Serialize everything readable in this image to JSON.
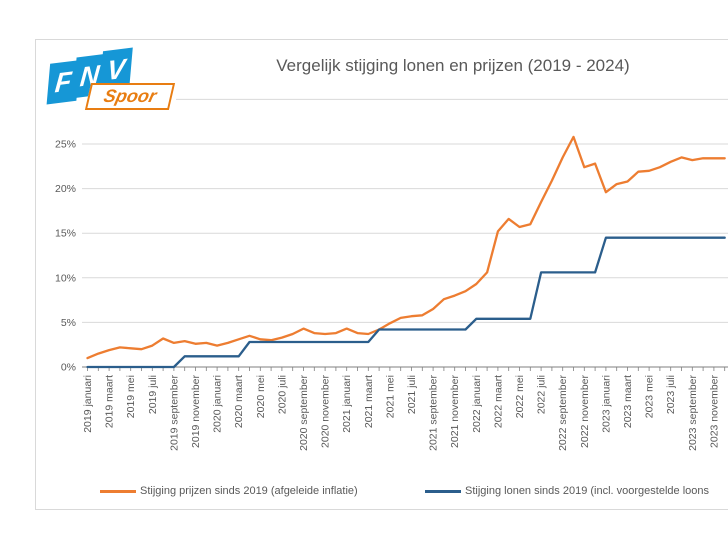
{
  "window": {
    "background": "#ffffff"
  },
  "card": {
    "border_color": "#d9d9d9",
    "background": "#ffffff"
  },
  "logo": {
    "brand_letters": [
      "F",
      "N",
      "V"
    ],
    "sub_label": "Spoor",
    "blue": "#1697d6",
    "orange": "#e87d12"
  },
  "chart_data": {
    "type": "line",
    "title": "Vergelijk stijging lonen en prijzen (2019 - 2024)",
    "title_color": "#595959",
    "grid": "horizontal",
    "grid_color": "#d9d9d9",
    "axis_color": "#7f7f7f",
    "label_color": "#595959",
    "legend_position": "bottom",
    "ylim": [
      0,
      30
    ],
    "y_major_unit": 5,
    "y_tick_labels": [
      "0%",
      "5%",
      "10%",
      "15%",
      "20%",
      "25%"
    ],
    "x_tick_labels": [
      "2019 januari",
      "2019 maart",
      "2019 mei",
      "2019 juli",
      "2019 september",
      "2019 november",
      "2020 januari",
      "2020 maart",
      "2020 mei",
      "2020 juli",
      "2020 september",
      "2020 november",
      "2021 januari",
      "2021 maart",
      "2021 mei",
      "2021 juli",
      "2021 september",
      "2021 november",
      "2022 januari",
      "2022 maart",
      "2022 mei",
      "2022 juli",
      "2022 september",
      "2022 november",
      "2023 januari",
      "2023 maart",
      "2023 mei",
      "2023 juli",
      "2023 september",
      "2023 november"
    ],
    "x_months": [
      "2019-01",
      "2019-02",
      "2019-03",
      "2019-04",
      "2019-05",
      "2019-06",
      "2019-07",
      "2019-08",
      "2019-09",
      "2019-10",
      "2019-11",
      "2019-12",
      "2020-01",
      "2020-02",
      "2020-03",
      "2020-04",
      "2020-05",
      "2020-06",
      "2020-07",
      "2020-08",
      "2020-09",
      "2020-10",
      "2020-11",
      "2020-12",
      "2021-01",
      "2021-02",
      "2021-03",
      "2021-04",
      "2021-05",
      "2021-06",
      "2021-07",
      "2021-08",
      "2021-09",
      "2021-10",
      "2021-11",
      "2021-12",
      "2022-01",
      "2022-02",
      "2022-03",
      "2022-04",
      "2022-05",
      "2022-06",
      "2022-07",
      "2022-08",
      "2022-09",
      "2022-10",
      "2022-11",
      "2022-12",
      "2023-01",
      "2023-02",
      "2023-03",
      "2023-04",
      "2023-05",
      "2023-06",
      "2023-07",
      "2023-08",
      "2023-09",
      "2023-10",
      "2023-11",
      "2023-12"
    ],
    "series": [
      {
        "name": "Stijging prijzen sinds 2019 (afgeleide inflatie)",
        "color": "#ED7D31",
        "values": [
          1.0,
          1.5,
          1.9,
          2.2,
          2.1,
          2.0,
          2.4,
          3.2,
          2.7,
          2.9,
          2.6,
          2.7,
          2.4,
          2.7,
          3.1,
          3.5,
          3.1,
          3.0,
          3.3,
          3.7,
          4.3,
          3.8,
          3.7,
          3.8,
          4.3,
          3.8,
          3.7,
          4.2,
          4.9,
          5.5,
          5.7,
          5.8,
          6.5,
          7.6,
          8.0,
          8.5,
          9.3,
          10.6,
          15.2,
          16.6,
          15.7,
          16.0,
          18.5,
          20.9,
          23.5,
          25.8,
          22.4,
          22.8,
          19.6,
          20.5,
          20.8,
          21.9,
          22.0,
          22.4,
          23.0,
          23.5,
          23.2,
          23.4,
          23.4,
          23.4
        ]
      },
      {
        "name": "Stijging lonen sinds 2019 (incl. voorgestelde loons",
        "color": "#2B5E8C",
        "values": [
          0,
          0,
          0,
          0,
          0,
          0,
          0,
          0,
          0,
          1.2,
          1.2,
          1.2,
          1.2,
          1.2,
          1.2,
          2.8,
          2.8,
          2.8,
          2.8,
          2.8,
          2.8,
          2.8,
          2.8,
          2.8,
          2.8,
          2.8,
          2.8,
          4.2,
          4.2,
          4.2,
          4.2,
          4.2,
          4.2,
          4.2,
          4.2,
          4.2,
          5.4,
          5.4,
          5.4,
          5.4,
          5.4,
          5.4,
          10.6,
          10.6,
          10.6,
          10.6,
          10.6,
          10.6,
          14.5,
          14.5,
          14.5,
          14.5,
          14.5,
          14.5,
          14.5,
          14.5,
          14.5,
          14.5,
          14.5,
          14.5
        ]
      }
    ]
  },
  "legend": [
    {
      "label": "Stijging prijzen sinds 2019 (afgeleide inflatie)",
      "color": "#ED7D31"
    },
    {
      "label": "Stijging lonen sinds 2019 (incl. voorgestelde loons",
      "color": "#2B5E8C"
    }
  ]
}
